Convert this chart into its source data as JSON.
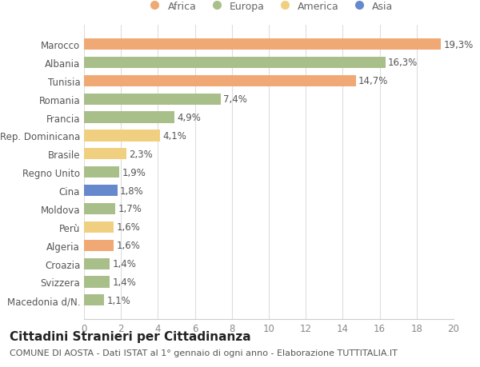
{
  "countries": [
    "Marocco",
    "Albania",
    "Tunisia",
    "Romania",
    "Francia",
    "Rep. Dominicana",
    "Brasile",
    "Regno Unito",
    "Cina",
    "Moldova",
    "Perù",
    "Algeria",
    "Croazia",
    "Svizzera",
    "Macedonia d/N."
  ],
  "values": [
    19.3,
    16.3,
    14.7,
    7.4,
    4.9,
    4.1,
    2.3,
    1.9,
    1.8,
    1.7,
    1.6,
    1.6,
    1.4,
    1.4,
    1.1
  ],
  "labels": [
    "19,3%",
    "16,3%",
    "14,7%",
    "7,4%",
    "4,9%",
    "4,1%",
    "2,3%",
    "1,9%",
    "1,8%",
    "1,7%",
    "1,6%",
    "1,6%",
    "1,4%",
    "1,4%",
    "1,1%"
  ],
  "continents": [
    "Africa",
    "Europa",
    "Africa",
    "Europa",
    "Europa",
    "America",
    "America",
    "Europa",
    "Asia",
    "Europa",
    "America",
    "Africa",
    "Europa",
    "Europa",
    "Europa"
  ],
  "colors": {
    "Africa": "#F0A875",
    "Europa": "#A8BF8A",
    "America": "#F0D080",
    "Asia": "#6688CC"
  },
  "legend_order": [
    "Africa",
    "Europa",
    "America",
    "Asia"
  ],
  "xlim": [
    0,
    20
  ],
  "xticks": [
    0,
    2,
    4,
    6,
    8,
    10,
    12,
    14,
    16,
    18,
    20
  ],
  "title": "Cittadini Stranieri per Cittadinanza",
  "subtitle": "COMUNE DI AOSTA - Dati ISTAT al 1° gennaio di ogni anno - Elaborazione TUTTITALIA.IT",
  "background_color": "#ffffff",
  "bar_height": 0.62,
  "label_fontsize": 8.5,
  "ylabel_fontsize": 8.5,
  "xlabel_fontsize": 8.5,
  "title_fontsize": 11,
  "subtitle_fontsize": 8
}
